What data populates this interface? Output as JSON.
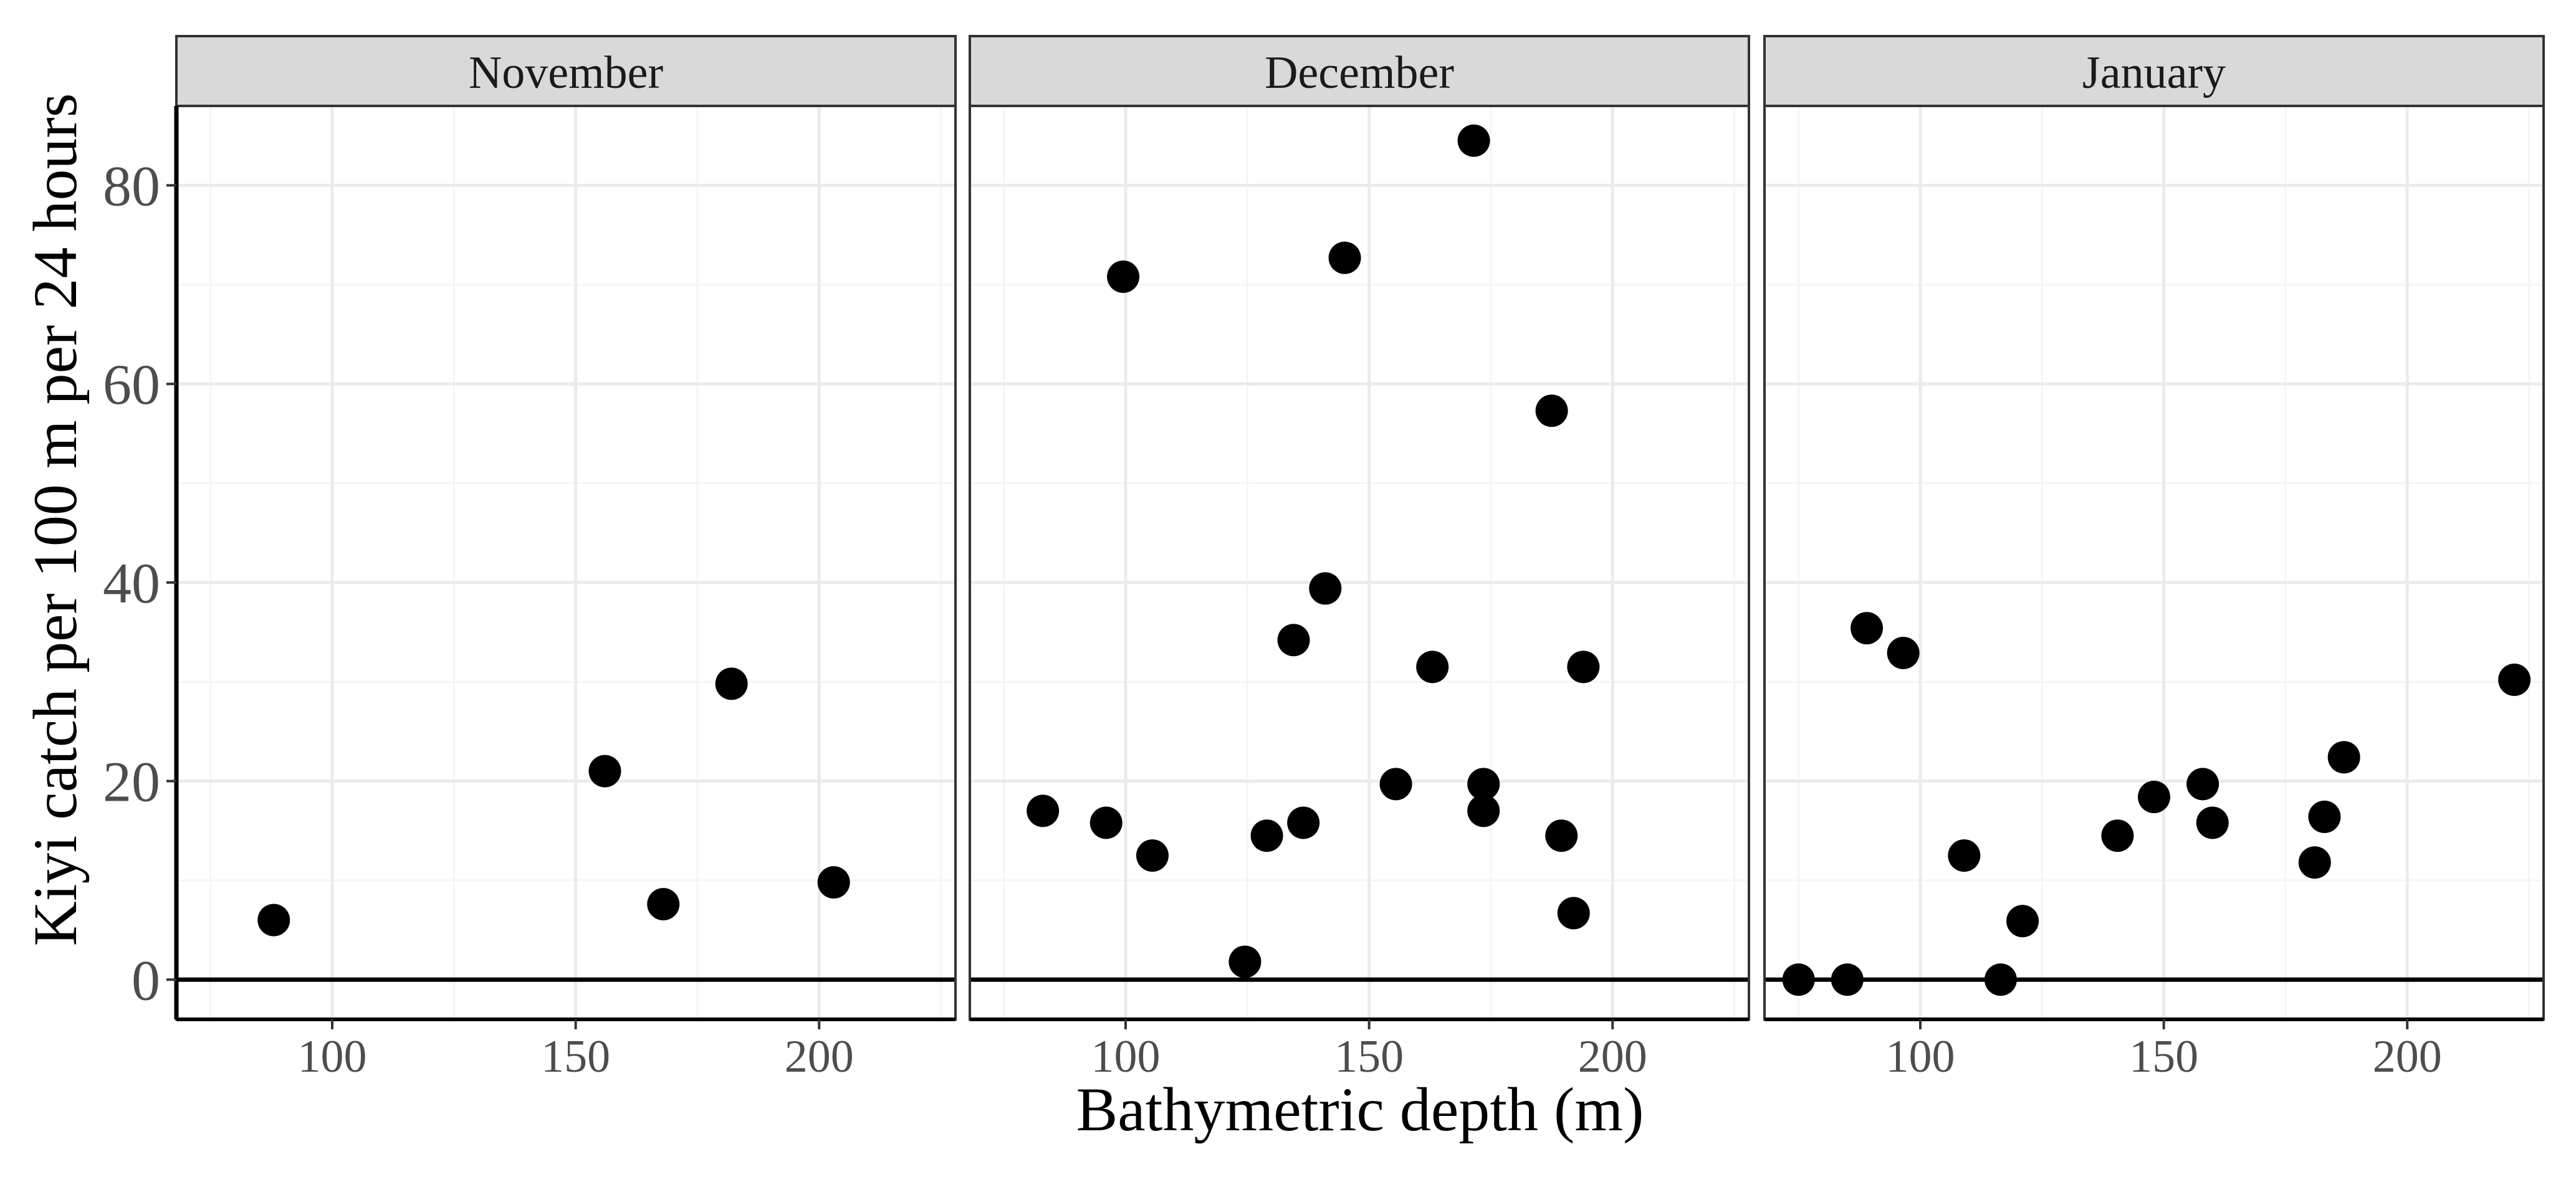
{
  "chart_data": {
    "type": "scatter",
    "layout": "facets in one row",
    "xlabel": "Bathymetric depth (m)",
    "ylabel": "Kiyi catch per 100 m per 24 hours",
    "xlim": [
      68,
      228
    ],
    "ylim": [
      -4,
      88
    ],
    "x_ticks": [
      100,
      150,
      200
    ],
    "y_ticks": [
      0,
      20,
      40,
      60,
      80
    ],
    "grid": true,
    "reference_line_y": 0,
    "facets": [
      {
        "label": "November",
        "points": [
          {
            "x": 88,
            "y": 6
          },
          {
            "x": 156,
            "y": 21
          },
          {
            "x": 168,
            "y": 7.6
          },
          {
            "x": 182,
            "y": 29.8
          },
          {
            "x": 203,
            "y": 9.8
          }
        ]
      },
      {
        "label": "December",
        "points": [
          {
            "x": 83,
            "y": 17
          },
          {
            "x": 96,
            "y": 15.8
          },
          {
            "x": 99.5,
            "y": 70.8
          },
          {
            "x": 105.5,
            "y": 12.5
          },
          {
            "x": 124.5,
            "y": 1.8
          },
          {
            "x": 129,
            "y": 14.5
          },
          {
            "x": 134.5,
            "y": 34.2
          },
          {
            "x": 136.5,
            "y": 15.8
          },
          {
            "x": 141,
            "y": 39.4
          },
          {
            "x": 145,
            "y": 72.7
          },
          {
            "x": 155.5,
            "y": 19.7
          },
          {
            "x": 163,
            "y": 31.5
          },
          {
            "x": 171.5,
            "y": 84.5
          },
          {
            "x": 173.5,
            "y": 19.7
          },
          {
            "x": 173.5,
            "y": 17
          },
          {
            "x": 187.5,
            "y": 57.3
          },
          {
            "x": 189.5,
            "y": 14.5
          },
          {
            "x": 192,
            "y": 6.7
          },
          {
            "x": 194,
            "y": 31.5
          }
        ]
      },
      {
        "label": "January",
        "points": [
          {
            "x": 75,
            "y": 0
          },
          {
            "x": 85,
            "y": 0
          },
          {
            "x": 89,
            "y": 35.4
          },
          {
            "x": 96.5,
            "y": 32.9
          },
          {
            "x": 109,
            "y": 12.5
          },
          {
            "x": 116.5,
            "y": 0
          },
          {
            "x": 121,
            "y": 5.9
          },
          {
            "x": 140.5,
            "y": 14.5
          },
          {
            "x": 148,
            "y": 18.4
          },
          {
            "x": 158,
            "y": 19.7
          },
          {
            "x": 160,
            "y": 15.8
          },
          {
            "x": 181,
            "y": 11.8
          },
          {
            "x": 183,
            "y": 16.4
          },
          {
            "x": 187,
            "y": 22.4
          },
          {
            "x": 222,
            "y": 30.2
          }
        ]
      }
    ]
  },
  "colors": {
    "point": "#000000",
    "strip_fill": "#d9d9d9",
    "grid_major": "#ebebeb",
    "grid_minor": "#f5f5f5",
    "panel_border": "#333333"
  }
}
